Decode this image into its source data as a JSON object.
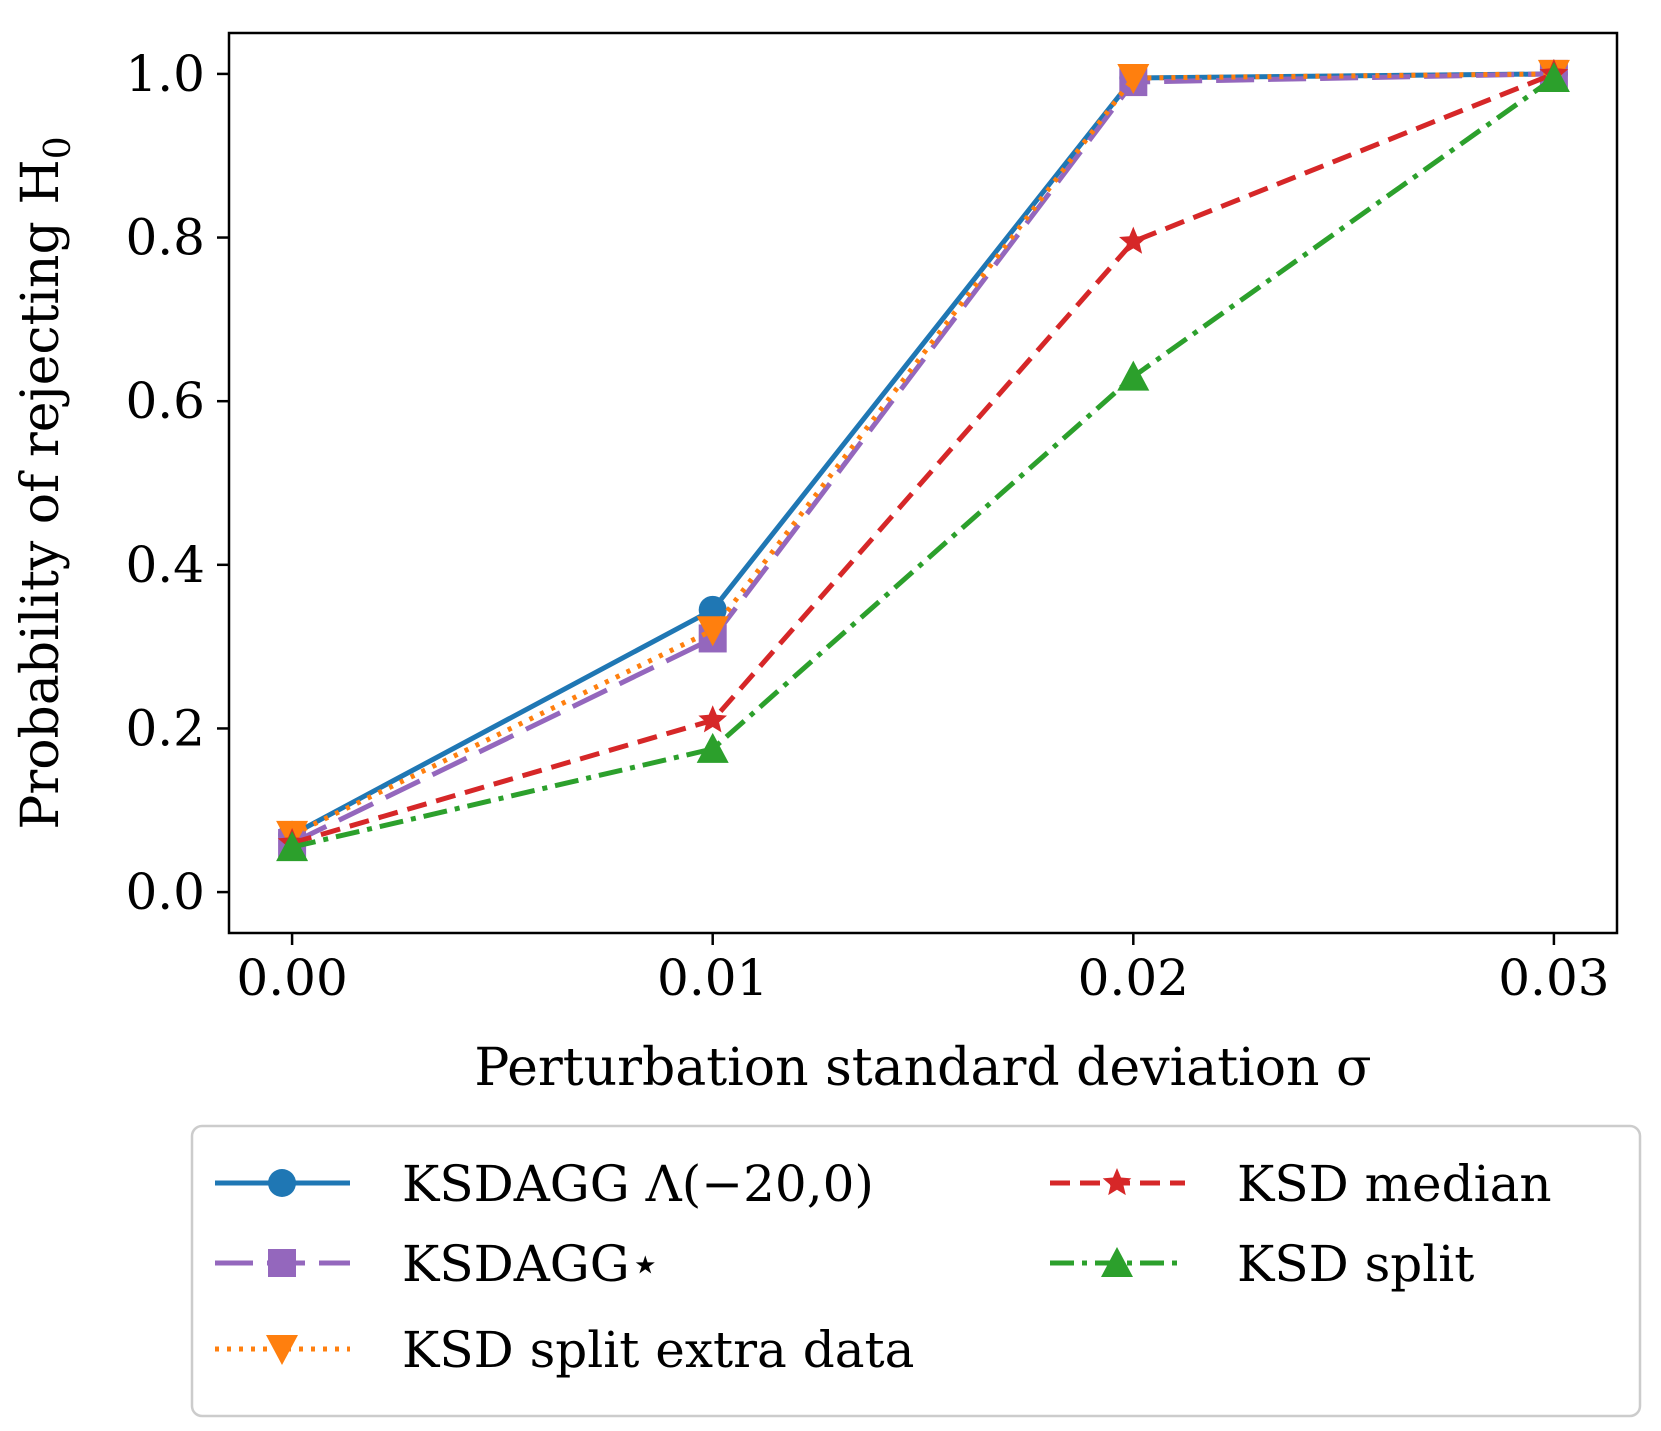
{
  "chart_data": {
    "type": "line",
    "xlabel": "Perturbation standard deviation σ",
    "ylabel": "Probability of rejecting H",
    "ylabel_subscript": "0",
    "x": [
      0.0,
      0.01,
      0.02,
      0.03
    ],
    "x_tick_labels": [
      "0.00",
      "0.01",
      "0.02",
      "0.03"
    ],
    "y_ticks": [
      0.0,
      0.2,
      0.4,
      0.6,
      0.8,
      1.0
    ],
    "y_tick_labels": [
      "0.0",
      "0.2",
      "0.4",
      "0.6",
      "0.8",
      "1.0"
    ],
    "xlim": [
      -0.0015,
      0.0315
    ],
    "ylim": [
      -0.05,
      1.05
    ],
    "grid": false,
    "legend_position": "below",
    "series": [
      {
        "name": "KSDAgg Λ(−20, 0)",
        "legend_label": "KSDAGG Λ(−20,0)",
        "color": "#1f77b4",
        "marker": "circle",
        "dash": "solid",
        "values": [
          0.07,
          0.345,
          0.995,
          1.0
        ]
      },
      {
        "name": "KSDAgg*",
        "legend_label": "KSDAGG⋆",
        "color": "#9467bd",
        "marker": "square",
        "dash": "longdash",
        "values": [
          0.06,
          0.31,
          0.99,
          1.0
        ]
      },
      {
        "name": "KSD split extra data",
        "legend_label": "KSD split extra data",
        "color": "#ff7f0e",
        "marker": "triangle-down",
        "dash": "dotted",
        "values": [
          0.07,
          0.32,
          0.995,
          1.0
        ]
      },
      {
        "name": "KSD median",
        "legend_label": "KSD median",
        "color": "#d62728",
        "marker": "star",
        "dash": "dashed",
        "values": [
          0.06,
          0.21,
          0.795,
          1.0
        ]
      },
      {
        "name": "KSD split",
        "legend_label": "KSD split",
        "color": "#2ca02c",
        "marker": "triangle-up",
        "dash": "dashdot",
        "values": [
          0.055,
          0.175,
          0.63,
          0.995
        ]
      }
    ]
  }
}
